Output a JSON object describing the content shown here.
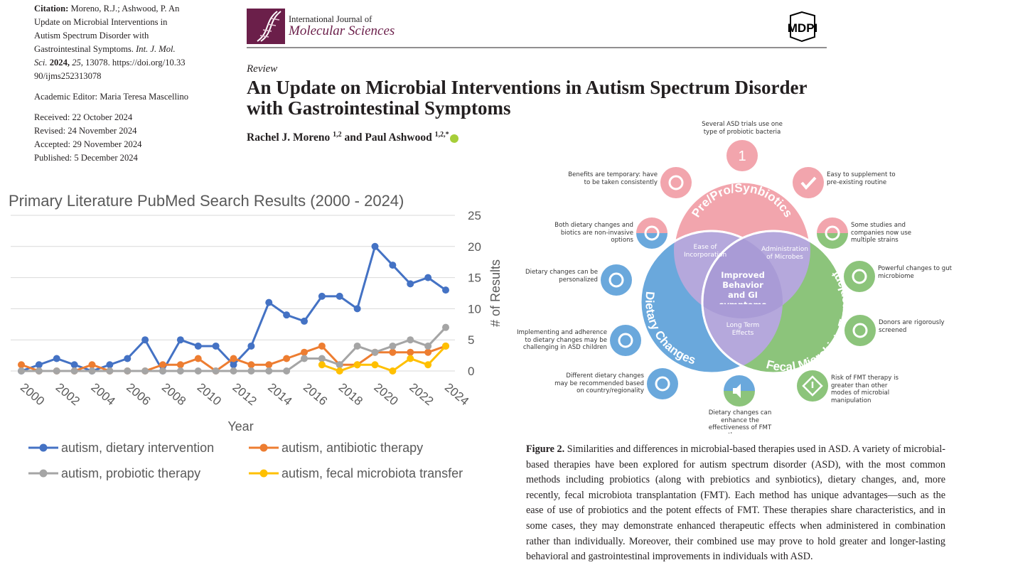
{
  "header": {
    "journal_line1": "International Journal of",
    "journal_line2": "Molecular Sciences",
    "publisher": "MDPI"
  },
  "citation": {
    "label": "Citation:",
    "authors": "Moreno, R.J.; Ashwood, P.",
    "title": "An Update on Microbial Interventions in Autism Spectrum Disorder with Gastrointestinal Symptoms.",
    "journal": "Int. J. Mol. Sci.",
    "year": "2024,",
    "volume": "25,",
    "article": "13078.",
    "doi": "https://doi.org/10.3390/ijms252313078"
  },
  "editor": {
    "label": "Academic Editor:",
    "name": "Maria Teresa Mascellino"
  },
  "dates": [
    "Received: 22 October 2024",
    "Revised: 24 November 2024",
    "Accepted: 29 November 2024",
    "Published: 5 December 2024"
  ],
  "article": {
    "type": "Review",
    "title": "An Update on Microbial Interventions in Autism Spectrum Disorder with Gastrointestinal Symptoms",
    "authors": [
      {
        "name": "Rachel J. Moreno",
        "affiliations": "1,2"
      },
      {
        "name": "Paul Ashwood",
        "affiliations": "1,2,*"
      }
    ],
    "conjunction": "and"
  },
  "chart_data": {
    "type": "line",
    "title": "Primary Literature PubMed Search Results (2000 - 2024)",
    "x_label": "Year",
    "y_label": "# of Results",
    "y_axis_side": "right",
    "x": [
      2000,
      2001,
      2002,
      2003,
      2004,
      2005,
      2006,
      2007,
      2008,
      2009,
      2010,
      2011,
      2012,
      2013,
      2014,
      2015,
      2016,
      2017,
      2018,
      2019,
      2020,
      2021,
      2022,
      2023,
      2024
    ],
    "xlim": [
      2000,
      2024
    ],
    "xticks": [
      2000,
      2002,
      2004,
      2006,
      2008,
      2010,
      2012,
      2014,
      2016,
      2018,
      2020,
      2022,
      2024
    ],
    "ylim": [
      0,
      25
    ],
    "yticks": [
      0,
      5,
      10,
      15,
      20,
      25
    ],
    "grid": true,
    "series": [
      {
        "name": "autism, dietary intervention",
        "color": "#4472c4",
        "values": [
          0,
          1,
          2,
          1,
          0,
          1,
          2,
          5,
          0,
          5,
          4,
          4,
          1,
          4,
          11,
          9,
          8,
          12,
          12,
          10,
          20,
          17,
          14,
          15,
          13
        ]
      },
      {
        "name": "autism, antibiotic therapy",
        "color": "#ed7d31",
        "values": [
          1,
          0,
          0,
          0,
          1,
          0,
          0,
          0,
          1,
          1,
          2,
          0,
          2,
          1,
          1,
          2,
          3,
          4,
          1,
          1,
          3,
          3,
          3,
          3,
          4
        ]
      },
      {
        "name": "autism, probiotic therapy",
        "color": "#a5a5a5",
        "values": [
          0,
          0,
          0,
          0,
          0,
          0,
          0,
          0,
          0,
          0,
          0,
          0,
          0,
          0,
          0,
          0,
          2,
          2,
          1,
          4,
          3,
          4,
          5,
          4,
          7
        ]
      },
      {
        "name": "autism, fecal microbiota transfer",
        "color": "#ffc000",
        "values": [
          null,
          null,
          null,
          null,
          null,
          null,
          null,
          null,
          null,
          null,
          null,
          null,
          null,
          null,
          null,
          null,
          null,
          1,
          0,
          1,
          1,
          0,
          2,
          1,
          4
        ]
      }
    ]
  },
  "diagram": {
    "sections": [
      {
        "label": "Pre/Pro/Synbiotics",
        "color": "#f2a5ad"
      },
      {
        "label": "Dietary Changes",
        "color": "#6aa8dc"
      },
      {
        "label": "Fecal Microbiota Transplant",
        "color": "#8cc47b"
      }
    ],
    "overlaps": [
      "Ease of Incorporation",
      "Administration of Microbes",
      "Long Term Effects"
    ],
    "overlap_color": "#b5a8dc",
    "center": "Improved Behavior and GI symptoms",
    "icon_text": "1",
    "nodes": [
      "Several ASD trials use one type of probiotic bacteria",
      "Easy to supplement to pre-existing routine",
      "Some studies and companies now use multiple strains",
      "Powerful changes to gut microbiome",
      "Donors are rigorously screened",
      "Risk of FMT therapy is greater than other modes of microbial manipulation",
      "Dietary changes can enhance the effectiveness of FMT therapy",
      "Different dietary changes may be recommended based on country/regionality",
      "Implementing and adherence to dietary changes may be challenging in ASD children",
      "Dietary changes can be personalized",
      "Both dietary changes and biotics are non-invasive options",
      "Benefits are temporary: have to be taken consistently"
    ]
  },
  "caption": {
    "label": "Figure 2.",
    "text": "Similarities and differences in microbial-based therapies used in ASD. A variety of microbial-based therapies have been explored for autism spectrum disorder (ASD), with the most common methods including probiotics (along with prebiotics and synbiotics), dietary changes, and, more recently, fecal microbiota transplantation (FMT). Each method has unique advantages—such as the ease of use of probiotics and the potent effects of FMT. These therapies share characteristics, and in some cases, they may demonstrate enhanced therapeutic effects when administered in combination rather than individually. Moreover, their combined use may prove to hold greater and longer-lasting behavioral and gastrointestinal improvements in individuals with ASD."
  }
}
